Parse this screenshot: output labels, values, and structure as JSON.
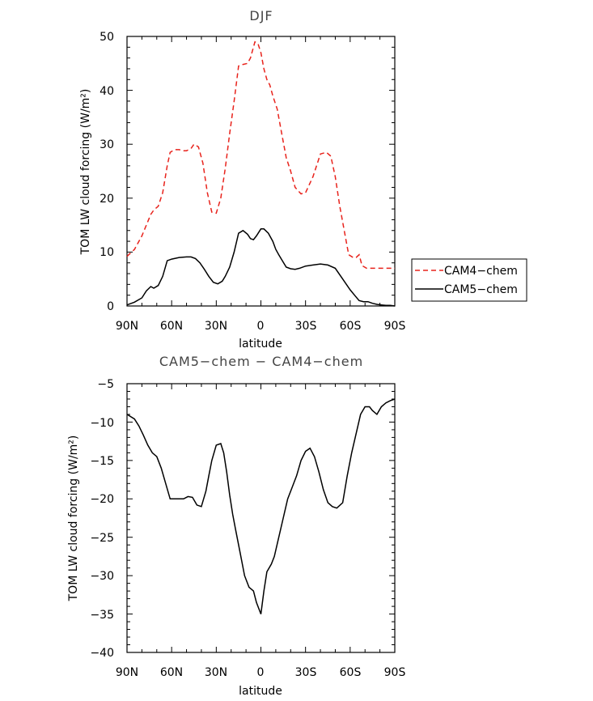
{
  "colors": {
    "cam4": "#e8231c",
    "cam5": "#000000",
    "diff": "#000000"
  },
  "chart_data": [
    {
      "type": "line",
      "title": "DJF",
      "xlabel": "latitude",
      "ylabel": "TOM LW cloud forcing (W/m²)",
      "xlim": [
        -90,
        90
      ],
      "ylim": [
        0,
        50
      ],
      "xticks": [
        -90,
        -60,
        -30,
        0,
        30,
        60,
        90
      ],
      "xtick_labels": [
        "90N",
        "60N",
        "30N",
        "0",
        "30S",
        "60S",
        "90S"
      ],
      "yticks": [
        0,
        10,
        20,
        30,
        40,
        50
      ],
      "ytick_labels": [
        "0",
        "10",
        "20",
        "30",
        "40",
        "50"
      ],
      "legend": {
        "placement": "outside-right",
        "entries": [
          "CAM4−chem",
          "CAM5−chem"
        ]
      },
      "series": [
        {
          "name": "CAM4−chem",
          "style": "dashed",
          "x": [
            -90,
            -85,
            -80,
            -77,
            -74,
            -72,
            -69,
            -66,
            -63,
            -61,
            -58,
            -55,
            -52,
            -50,
            -47,
            -45,
            -42,
            -39,
            -36,
            -33,
            -30,
            -27,
            -24,
            -21,
            -18,
            -15,
            -12,
            -9,
            -7,
            -4,
            -2,
            0,
            2,
            4,
            6,
            8,
            11,
            14,
            17,
            20,
            23,
            27,
            30,
            35,
            40,
            44,
            47,
            50,
            53,
            56,
            59,
            62,
            64,
            66,
            68,
            71,
            74,
            77,
            80,
            83,
            86,
            88,
            90
          ],
          "y": [
            9.2,
            10.5,
            13,
            15,
            17,
            17.8,
            18.5,
            21,
            26,
            28.5,
            29,
            29,
            28.8,
            28.8,
            29.2,
            30,
            29.5,
            26.5,
            21,
            17.4,
            17.2,
            20,
            25.5,
            32,
            38,
            44.5,
            44.8,
            45,
            46,
            49,
            48.7,
            47,
            44,
            42,
            41,
            39,
            36.5,
            32,
            27.5,
            25,
            22,
            20.8,
            21,
            24,
            28.2,
            28.5,
            27.8,
            24,
            18.5,
            14,
            9.5,
            9,
            9,
            9.5,
            7.5,
            7,
            7,
            7,
            7,
            7,
            7,
            7,
            7
          ]
        },
        {
          "name": "CAM5−chem",
          "style": "solid",
          "x": [
            -90,
            -85,
            -80,
            -77,
            -74,
            -72,
            -69,
            -66,
            -63,
            -60,
            -55,
            -50,
            -47,
            -44,
            -41,
            -38,
            -35,
            -32,
            -29,
            -26,
            -24,
            -21,
            -18,
            -15,
            -12,
            -9,
            -7,
            -5,
            -3,
            0,
            2,
            5,
            8,
            10,
            12,
            14,
            17,
            20,
            23,
            26,
            30,
            35,
            40,
            45,
            50,
            55,
            60,
            63,
            66,
            69,
            72,
            75,
            78,
            81,
            84,
            87,
            90
          ],
          "y": [
            0.2,
            0.7,
            1.5,
            2.8,
            3.6,
            3.3,
            3.8,
            5.5,
            8.4,
            8.7,
            9,
            9.1,
            9.1,
            8.8,
            8,
            6.8,
            5.5,
            4.4,
            4.1,
            4.6,
            5.5,
            7.2,
            10,
            13.5,
            14,
            13.3,
            12.5,
            12.3,
            13,
            14.3,
            14.3,
            13.5,
            12,
            10.5,
            9.5,
            8.6,
            7.2,
            6.9,
            6.8,
            7,
            7.4,
            7.6,
            7.8,
            7.6,
            7,
            5,
            3,
            2,
            1,
            0.8,
            0.8,
            0.5,
            0.3,
            0.2,
            0.1,
            0.1,
            0
          ]
        }
      ]
    },
    {
      "type": "line",
      "title": "CAM5−chem − CAM4−chem",
      "xlabel": "latitude",
      "ylabel": "TOM LW cloud forcing (W/m²)",
      "xlim": [
        -90,
        90
      ],
      "ylim": [
        -40,
        -5
      ],
      "xticks": [
        -90,
        -60,
        -30,
        0,
        30,
        60,
        90
      ],
      "xtick_labels": [
        "90N",
        "60N",
        "30N",
        "0",
        "30S",
        "60S",
        "90S"
      ],
      "yticks": [
        -40,
        -35,
        -30,
        -25,
        -20,
        -15,
        -10,
        -5
      ],
      "ytick_labels": [
        "−40",
        "−35",
        "−30",
        "−25",
        "−20",
        "−15",
        "−10",
        "−5"
      ],
      "series": [
        {
          "name": "CAM5−chem − CAM4−chem",
          "style": "solid",
          "x": [
            -90,
            -85,
            -82,
            -79,
            -76,
            -73,
            -70,
            -67,
            -64,
            -61,
            -58,
            -55,
            -52,
            -49,
            -46,
            -43,
            -40,
            -37,
            -35,
            -33,
            -30,
            -27,
            -25,
            -23,
            -21,
            -19,
            -17,
            -14,
            -11,
            -8,
            -5,
            -3,
            0,
            2,
            4,
            7,
            9,
            12,
            15,
            18,
            21,
            24,
            27,
            30,
            33,
            36,
            39,
            42,
            45,
            48,
            51,
            55,
            58,
            61,
            64,
            67,
            70,
            73,
            75,
            78,
            81,
            84,
            87,
            90
          ],
          "y": [
            -9,
            -9.6,
            -10.5,
            -11.7,
            -13,
            -14,
            -14.5,
            -16,
            -18,
            -20,
            -20,
            -20,
            -20,
            -19.7,
            -19.8,
            -20.8,
            -21,
            -19,
            -17,
            -15,
            -13,
            -12.8,
            -14,
            -16.5,
            -19.5,
            -22,
            -24,
            -27,
            -30,
            -31.5,
            -32,
            -33.5,
            -35,
            -32,
            -29.5,
            -28.5,
            -27.5,
            -25,
            -22.5,
            -20,
            -18.5,
            -17,
            -15,
            -13.8,
            -13.4,
            -14.5,
            -16.5,
            -18.8,
            -20.5,
            -21,
            -21.2,
            -20.5,
            -17,
            -14,
            -11.5,
            -9,
            -8,
            -8,
            -8.5,
            -9,
            -8,
            -7.5,
            -7.2,
            -7
          ]
        }
      ]
    }
  ]
}
